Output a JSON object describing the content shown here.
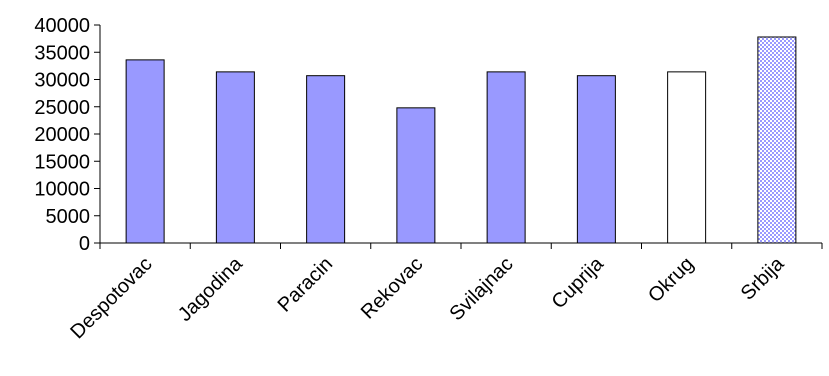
{
  "chart_data": {
    "type": "bar",
    "categories": [
      "Despotovac",
      "Jagodina",
      "Paracin",
      "Rekovac",
      "Svilajnac",
      "Cuprija",
      "Okrug",
      "Srbija"
    ],
    "values": [
      33600,
      31400,
      30700,
      24800,
      31400,
      30700,
      31400,
      37800
    ],
    "fills": [
      "solid",
      "solid",
      "solid",
      "solid",
      "solid",
      "solid",
      "white",
      "checker"
    ],
    "colors": {
      "bar": "#9999ff",
      "okrug": "#ffffff",
      "srbija_dots": "#9999ff",
      "srbija_bg": "#ffffff",
      "outline": "#000000"
    },
    "ylim": [
      0,
      40000
    ],
    "yticks": [
      "0",
      "5000",
      "10000",
      "15000",
      "20000",
      "25000",
      "30000",
      "35000",
      "40000"
    ],
    "title": "",
    "xlabel": "",
    "ylabel": "",
    "grid": false,
    "legend": "none"
  }
}
